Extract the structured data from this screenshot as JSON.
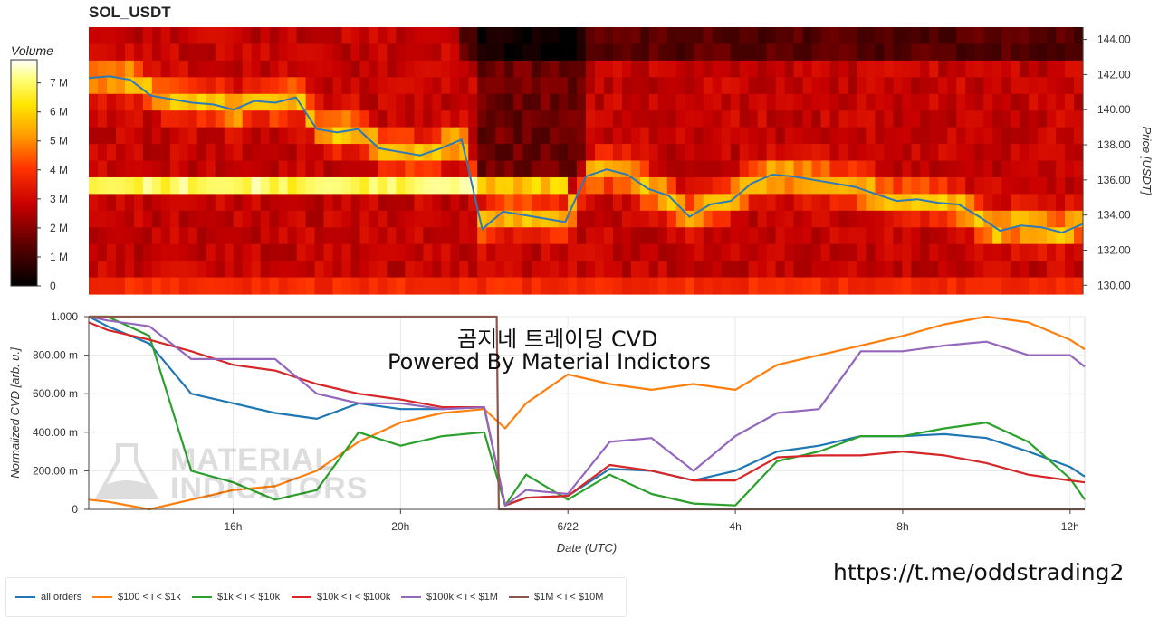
{
  "title": "SOL_USDT",
  "colorbar": {
    "label": "Volume",
    "ticks": [
      "0",
      "1 M",
      "2 M",
      "3 M",
      "4 M",
      "5 M",
      "6 M",
      "7 M"
    ]
  },
  "overlay": {
    "line1": "곰지네 트레이딩 CVD",
    "line2": "Powered By Material Indictors"
  },
  "watermark": {
    "line1": "MATERIAL",
    "line2": "INDICATORS"
  },
  "url": "https://t.me/oddstrading2",
  "colors": {
    "all_orders": "#1f77b4",
    "s100_1k": "#ff7f0e",
    "s1k_10k": "#2ca02c",
    "s10k_100k": "#d62728",
    "s100k_1m": "#9467bd",
    "s1m_10m": "#8c564b",
    "price_line": "#2d7ab8"
  },
  "chart_data": [
    {
      "type": "heatmap",
      "title": "SOL_USDT",
      "ylabel": "Price [USDT]",
      "ylim": [
        129.5,
        144.7
      ],
      "yticks": [
        "130.00",
        "132.00",
        "134.00",
        "136.00",
        "138.00",
        "140.00",
        "142.00",
        "144.00"
      ],
      "colorbar_label": "Volume",
      "colorbar_range": [
        0,
        7800000
      ],
      "price_series": {
        "name": "",
        "x_hours": [
          0,
          0.5,
          1.0,
          1.5,
          2.0,
          2.5,
          3.0,
          3.5,
          4.0,
          4.5,
          5.0,
          5.5,
          6.0,
          6.5,
          7.0,
          7.5,
          8.0,
          8.5,
          9.0,
          9.5,
          10.0,
          10.5,
          11.0,
          11.5,
          12.0,
          12.5,
          13.0,
          13.5,
          14.0,
          14.5,
          15.0,
          15.5,
          16.0,
          16.5,
          17.0,
          17.5,
          18.0,
          18.5,
          19.0,
          19.5,
          20.0,
          20.5,
          21.0,
          21.5,
          22.0,
          22.5,
          23.0,
          23.5,
          24.0
        ],
        "price": [
          141.8,
          141.9,
          141.7,
          140.8,
          140.6,
          140.4,
          140.3,
          140.0,
          140.5,
          140.4,
          140.7,
          138.9,
          138.7,
          138.9,
          137.8,
          137.6,
          137.4,
          137.8,
          138.3,
          133.2,
          134.2,
          134.0,
          133.8,
          133.6,
          136.2,
          136.6,
          136.3,
          135.5,
          135.1,
          133.9,
          134.6,
          134.8,
          135.8,
          136.3,
          136.2,
          136.0,
          135.8,
          135.6,
          135.2,
          134.8,
          134.9,
          134.7,
          134.6,
          133.9,
          133.1,
          133.4,
          133.3,
          133.0,
          133.5
        ]
      }
    },
    {
      "type": "line",
      "xlabel": "Date (UTC)",
      "ylabel": "Normalized CVD [arb. u.]",
      "ylim": [
        0,
        1.0
      ],
      "yticks": [
        "0",
        "200.00 m",
        "400.00 m",
        "600.00 m",
        "800.00 m",
        "1.000"
      ],
      "xticks": [
        "16h",
        "20h",
        "6/22",
        "4h",
        "8h",
        "12h"
      ],
      "x_start_hour": 12.55,
      "xtick_hours": [
        16,
        20,
        24,
        28,
        32,
        36
      ],
      "x_end_hour": 36.35,
      "series": [
        {
          "name": "all orders",
          "x": [
            12.55,
            13,
            14,
            15,
            16,
            17,
            18,
            19,
            20,
            21,
            22,
            22.5,
            23,
            24,
            25,
            26,
            27,
            28,
            29,
            30,
            31,
            32,
            33,
            34,
            35,
            36,
            36.35
          ],
          "y": [
            1.0,
            0.95,
            0.86,
            0.6,
            0.55,
            0.5,
            0.47,
            0.55,
            0.52,
            0.52,
            0.53,
            0.02,
            0.06,
            0.07,
            0.21,
            0.2,
            0.15,
            0.2,
            0.3,
            0.33,
            0.38,
            0.38,
            0.39,
            0.37,
            0.3,
            0.22,
            0.17
          ]
        },
        {
          "name": "$100 < i < $1k",
          "x": [
            12.55,
            13,
            14,
            15,
            16,
            17,
            18,
            19,
            20,
            21,
            22,
            22.5,
            23,
            24,
            25,
            26,
            27,
            28,
            29,
            30,
            31,
            32,
            33,
            34,
            35,
            36,
            36.35
          ],
          "y": [
            0.05,
            0.04,
            0.0,
            0.05,
            0.1,
            0.12,
            0.2,
            0.35,
            0.45,
            0.5,
            0.52,
            0.42,
            0.55,
            0.7,
            0.65,
            0.62,
            0.65,
            0.62,
            0.75,
            0.8,
            0.85,
            0.9,
            0.96,
            1.0,
            0.97,
            0.88,
            0.83
          ]
        },
        {
          "name": "$1k < i < $10k",
          "x": [
            12.55,
            13,
            14,
            15,
            16,
            17,
            18,
            19,
            20,
            21,
            22,
            22.5,
            23,
            24,
            25,
            26,
            27,
            28,
            29,
            30,
            31,
            32,
            33,
            34,
            35,
            36,
            36.35
          ],
          "y": [
            1.0,
            1.0,
            0.9,
            0.2,
            0.14,
            0.05,
            0.1,
            0.4,
            0.33,
            0.38,
            0.4,
            0.02,
            0.18,
            0.05,
            0.18,
            0.08,
            0.03,
            0.02,
            0.25,
            0.3,
            0.38,
            0.38,
            0.42,
            0.45,
            0.35,
            0.16,
            0.05
          ]
        },
        {
          "name": "$10k < i < $100k",
          "x": [
            12.55,
            13,
            14,
            15,
            16,
            17,
            18,
            19,
            20,
            21,
            22,
            22.5,
            23,
            24,
            25,
            26,
            27,
            28,
            29,
            30,
            31,
            32,
            33,
            34,
            35,
            36,
            36.35
          ],
          "y": [
            0.97,
            0.93,
            0.88,
            0.82,
            0.75,
            0.72,
            0.65,
            0.6,
            0.57,
            0.53,
            0.53,
            0.02,
            0.06,
            0.07,
            0.23,
            0.2,
            0.15,
            0.15,
            0.27,
            0.28,
            0.28,
            0.3,
            0.28,
            0.24,
            0.18,
            0.15,
            0.14
          ]
        },
        {
          "name": "$100k < i < $1M",
          "x": [
            12.55,
            13,
            14,
            15,
            16,
            17,
            18,
            19,
            20,
            21,
            22,
            22.5,
            23,
            24,
            25,
            26,
            27,
            28,
            29,
            30,
            31,
            32,
            33,
            34,
            35,
            36,
            36.35
          ],
          "y": [
            1.0,
            0.98,
            0.95,
            0.78,
            0.78,
            0.78,
            0.6,
            0.55,
            0.55,
            0.52,
            0.53,
            0.02,
            0.1,
            0.08,
            0.35,
            0.37,
            0.2,
            0.38,
            0.5,
            0.52,
            0.82,
            0.82,
            0.85,
            0.87,
            0.8,
            0.8,
            0.74
          ]
        },
        {
          "name": "$1M < i < $10M",
          "x": [
            12.55,
            22.3,
            22.35,
            36.35
          ],
          "y": [
            1.0,
            1.0,
            0.0,
            0.0
          ]
        }
      ]
    }
  ],
  "legend": [
    {
      "label": "all orders",
      "key": "all_orders"
    },
    {
      "label": "$100 < i < $1k",
      "key": "s100_1k"
    },
    {
      "label": "$1k < i < $10k",
      "key": "s1k_10k"
    },
    {
      "label": "$10k < i < $100k",
      "key": "s10k_100k"
    },
    {
      "label": "$100k < i < $1M",
      "key": "s100k_1m"
    },
    {
      "label": "$1M < i < $10M",
      "key": "s1m_10m"
    }
  ]
}
